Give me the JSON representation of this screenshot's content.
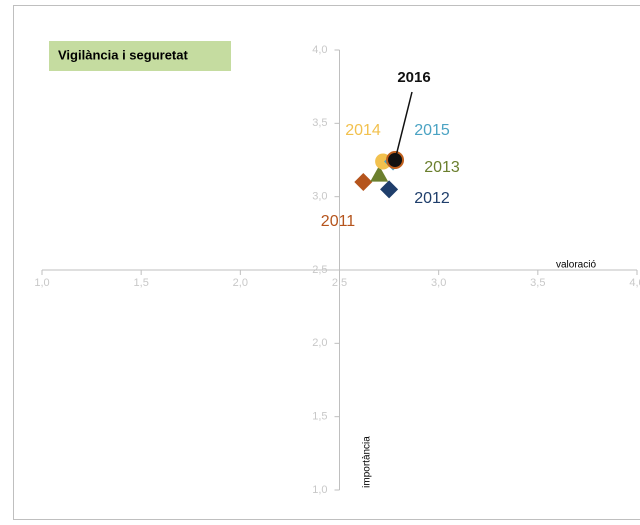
{
  "chart_data": {
    "type": "scatter",
    "title": "Vigilància i seguretat",
    "xlabel": "valoració",
    "ylabel": "importància",
    "xlim": [
      1,
      4
    ],
    "ylim": [
      1,
      4
    ],
    "xticks": [
      {
        "value": 1,
        "label": "1,0"
      },
      {
        "value": 1.5,
        "label": "1,5"
      },
      {
        "value": 2,
        "label": "2,0"
      },
      {
        "value": 2.5,
        "label": "2,5"
      },
      {
        "value": 3,
        "label": "3,0"
      },
      {
        "value": 3.5,
        "label": "3,5"
      },
      {
        "value": 4,
        "label": "4,0"
      }
    ],
    "yticks": [
      {
        "value": 1,
        "label": "1,0"
      },
      {
        "value": 1.5,
        "label": "1,5"
      },
      {
        "value": 2,
        "label": "2,0"
      },
      {
        "value": 2.5,
        "label": "2,5"
      },
      {
        "value": 3,
        "label": "3,0"
      },
      {
        "value": 3.5,
        "label": "3,5"
      },
      {
        "value": 4,
        "label": "4,0"
      }
    ],
    "series": [
      {
        "name": "2011",
        "color": "#b5541c",
        "marker": "diamond",
        "x": [
          2.62
        ],
        "values": [
          3.1
        ]
      },
      {
        "name": "2012",
        "color": "#1f3e6b",
        "marker": "diamond",
        "x": [
          2.75
        ],
        "values": [
          3.05
        ]
      },
      {
        "name": "2013",
        "color": "#6b7f2e",
        "marker": "triangle",
        "x": [
          2.7
        ],
        "values": [
          3.15
        ]
      },
      {
        "name": "2014",
        "color": "#f2c14e",
        "marker": "circle",
        "x": [
          2.72
        ],
        "values": [
          3.24
        ]
      },
      {
        "name": "2015",
        "color": "#4ba3c3",
        "marker": "diamond",
        "x": [
          2.77
        ],
        "values": [
          3.24
        ]
      },
      {
        "name": "2016",
        "color": "#111111",
        "marker": "circle",
        "x": [
          2.78
        ],
        "values": [
          3.25
        ]
      }
    ]
  }
}
